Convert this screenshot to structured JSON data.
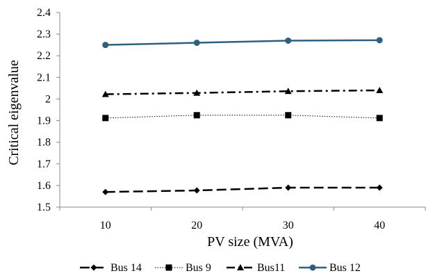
{
  "chart_data": {
    "type": "line",
    "xlabel": "PV size (MVA)",
    "ylabel": "Critical eigenvalue",
    "categories": [
      "10",
      "20",
      "30",
      "40"
    ],
    "ylim": [
      1.5,
      2.4
    ],
    "yticks": [
      "1.5",
      "1.6",
      "1.7",
      "1.8",
      "1.9",
      "2",
      "2.1",
      "2.2",
      "2.3",
      "2.4"
    ],
    "grid": false,
    "legend_position": "bottom",
    "series": [
      {
        "name": "Bus 14",
        "values": [
          1.57,
          1.577,
          1.59,
          1.59
        ],
        "marker": "diamond",
        "line_style": "long-dash",
        "color": "#000000"
      },
      {
        "name": "Bus 9",
        "values": [
          1.912,
          1.925,
          1.925,
          1.912
        ],
        "marker": "square",
        "line_style": "dotted",
        "color": "#000000"
      },
      {
        "name": "Bus11",
        "values": [
          2.022,
          2.028,
          2.036,
          2.04
        ],
        "marker": "triangle",
        "line_style": "dash-dot",
        "color": "#000000"
      },
      {
        "name": "Bus 12",
        "values": [
          2.25,
          2.26,
          2.27,
          2.272
        ],
        "marker": "circle",
        "line_style": "solid",
        "color": "#2E5F7F"
      }
    ]
  }
}
